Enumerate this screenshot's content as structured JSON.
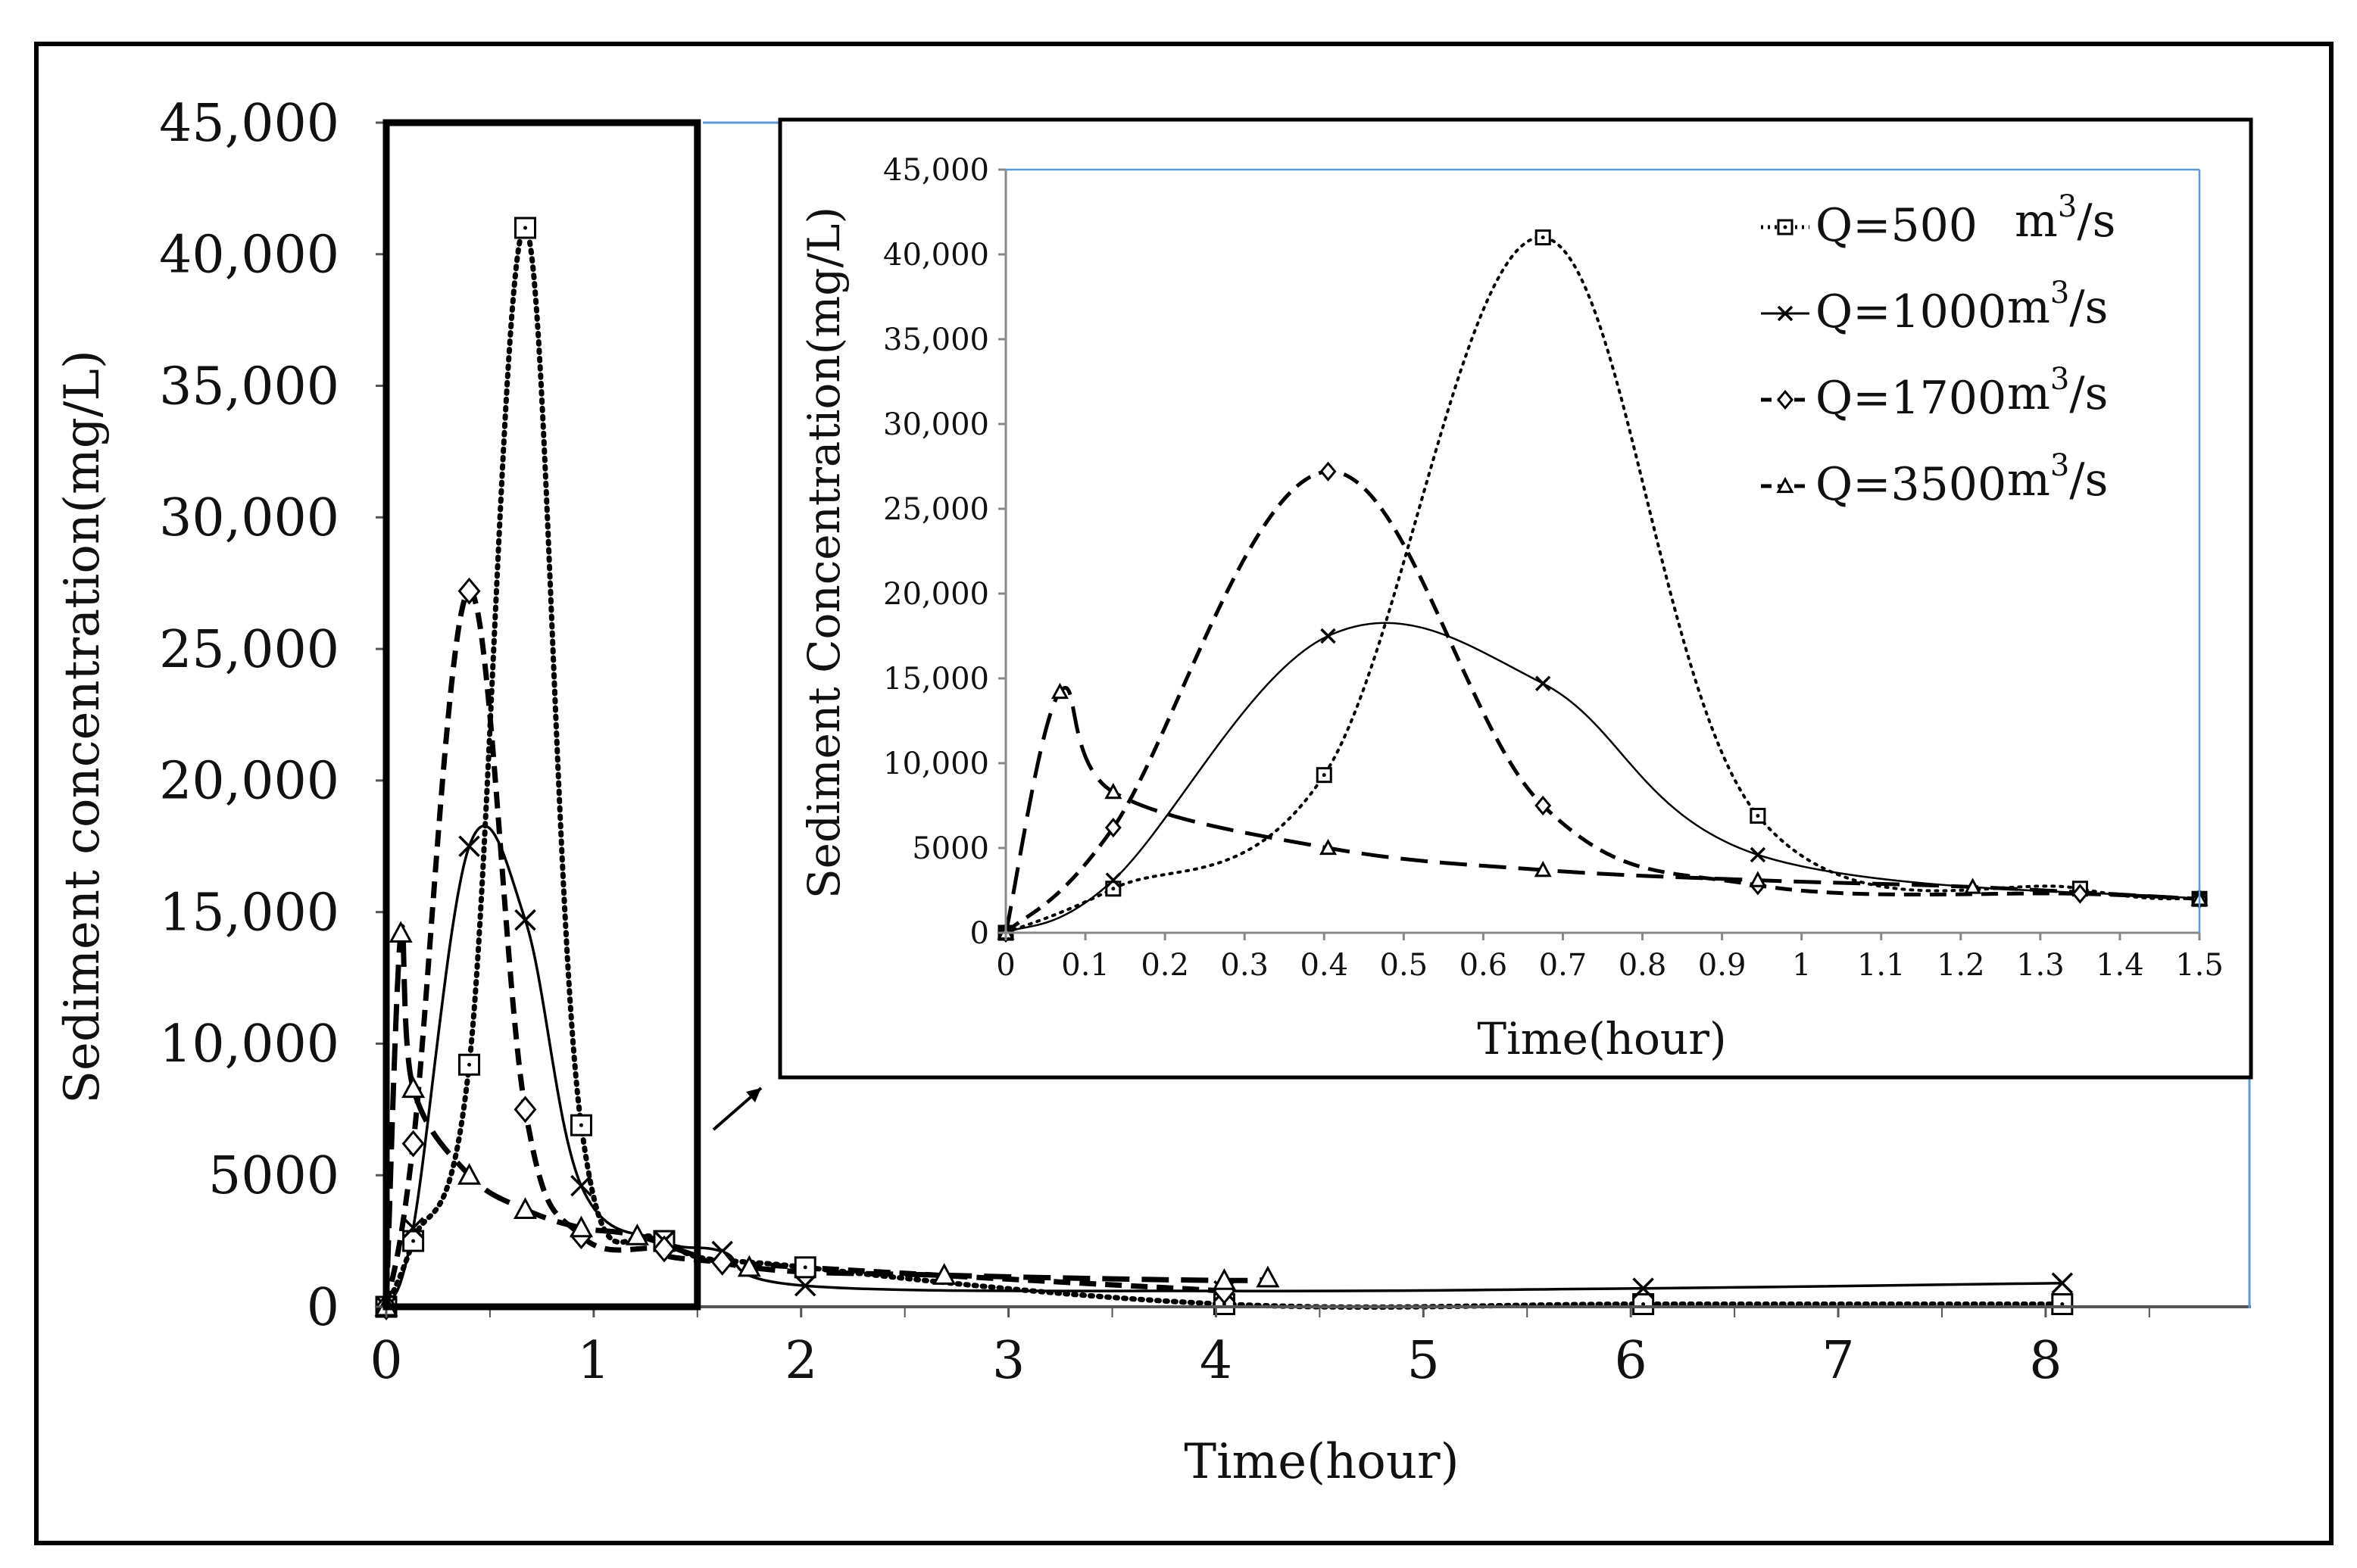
{
  "chart_data": [
    {
      "type": "line",
      "panel": "main",
      "xlabel": "Time(hour)",
      "ylabel": "Sediment concentration(mg/L)",
      "xlim": [
        0,
        8.8
      ],
      "ylim": [
        0,
        45000
      ],
      "x_ticks": [
        0,
        1,
        2,
        3,
        4,
        5,
        6,
        7,
        8
      ],
      "x_tick_labels": [
        "0",
        "1",
        "2",
        "3",
        "4",
        "5",
        "6",
        "7",
        "8"
      ],
      "y_ticks": [
        0,
        5000,
        10000,
        15000,
        20000,
        25000,
        30000,
        35000,
        40000,
        45000
      ],
      "y_tick_labels": [
        "0",
        "5000",
        "10,000",
        "15,000",
        "20,000",
        "25,000",
        "30,000",
        "35,000",
        "40,000",
        "45,000"
      ],
      "grid": false,
      "series": [
        {
          "name": "Q=500",
          "marker": "square",
          "dash": "dotted",
          "x": [
            0,
            0.13,
            0.4,
            0.67,
            0.94,
            1.34,
            2.02,
            4.04,
            6.06,
            8.08
          ],
          "y": [
            0,
            2500,
            9200,
            41000,
            6900,
            2500,
            1500,
            100,
            100,
            100
          ]
        },
        {
          "name": "Q=1000",
          "marker": "x",
          "dash": "solid",
          "x": [
            0,
            0.13,
            0.4,
            0.67,
            0.94,
            1.34,
            1.62,
            2.02,
            4.04,
            6.06,
            8.08
          ],
          "y": [
            0,
            3000,
            17500,
            14700,
            4600,
            2500,
            2100,
            800,
            600,
            700,
            900
          ]
        },
        {
          "name": "Q=1700",
          "marker": "diamond",
          "dash": "dashed",
          "x": [
            0,
            0.13,
            0.4,
            0.67,
            0.94,
            1.34,
            1.62,
            4.04
          ],
          "y": [
            0,
            6200,
            27200,
            7500,
            2700,
            2200,
            1700,
            600
          ]
        },
        {
          "name": "Q=3500",
          "marker": "triangle",
          "dash": "long-dashed",
          "x": [
            0,
            0.07,
            0.13,
            0.4,
            0.67,
            0.94,
            1.21,
            1.75,
            2.69,
            4.04,
            4.25
          ],
          "y": [
            0,
            14200,
            8300,
            5000,
            3700,
            3000,
            2700,
            1500,
            1200,
            1000,
            1100
          ]
        }
      ],
      "highlight_box": {
        "xlim": [
          0,
          1.5
        ],
        "ylim": [
          0,
          45000
        ]
      }
    },
    {
      "type": "line",
      "panel": "inset",
      "xlabel": "Time(hour)",
      "ylabel": "Sediment Concentration(mg/L)",
      "xlim": [
        0,
        1.5
      ],
      "ylim": [
        0,
        45000
      ],
      "x_ticks": [
        0,
        0.1,
        0.2,
        0.3,
        0.4,
        0.5,
        0.6,
        0.7,
        0.8,
        0.9,
        1,
        1.1,
        1.2,
        1.3,
        1.4,
        1.5
      ],
      "x_tick_labels": [
        "0",
        "0.1",
        "0.2",
        "0.3",
        "0.4",
        "0.5",
        "0.6",
        "0.7",
        "0.8",
        "0.9",
        "1",
        "1.1",
        "1.2",
        "1.3",
        "1.4",
        "1.5"
      ],
      "y_ticks": [
        0,
        5000,
        10000,
        15000,
        20000,
        25000,
        30000,
        35000,
        40000,
        45000
      ],
      "y_tick_labels": [
        "0",
        "5000",
        "10,000",
        "15,000",
        "20,000",
        "25,000",
        "30,000",
        "35,000",
        "40,000",
        "45,000"
      ],
      "grid": false,
      "legend": {
        "position": "top-right",
        "entries": [
          {
            "label": "Q=500",
            "unit": "m",
            "sup": "3",
            "tail": "/s"
          },
          {
            "label": "Q=1000",
            "unit": "m",
            "sup": "3",
            "tail": "/s"
          },
          {
            "label": "Q=1700",
            "unit": "m",
            "sup": "3",
            "tail": "/s"
          },
          {
            "label": "Q=3500",
            "unit": "m",
            "sup": "3",
            "tail": "/s"
          }
        ]
      },
      "series": [
        {
          "name": "Q=500",
          "marker": "square",
          "dash": "dotted",
          "x": [
            0,
            0.135,
            0.4,
            0.675,
            0.945,
            1.35,
            1.5
          ],
          "y": [
            0,
            2600,
            9300,
            41000,
            6900,
            2600,
            2000
          ]
        },
        {
          "name": "Q=1000",
          "marker": "x",
          "dash": "solid",
          "x": [
            0,
            0.135,
            0.405,
            0.675,
            0.945,
            1.5
          ],
          "y": [
            0,
            3100,
            17500,
            14700,
            4600,
            2000
          ]
        },
        {
          "name": "Q=1700",
          "marker": "diamond",
          "dash": "dashed",
          "x": [
            0,
            0.135,
            0.405,
            0.675,
            0.945,
            1.35,
            1.5
          ],
          "y": [
            0,
            6200,
            27200,
            7500,
            2800,
            2300,
            2000
          ]
        },
        {
          "name": "Q=3500",
          "marker": "triangle",
          "dash": "long-dashed",
          "x": [
            0,
            0.068,
            0.135,
            0.405,
            0.675,
            0.945,
            1.215,
            1.5
          ],
          "y": [
            0,
            14200,
            8300,
            5000,
            3700,
            3100,
            2700,
            2000
          ]
        }
      ]
    }
  ]
}
